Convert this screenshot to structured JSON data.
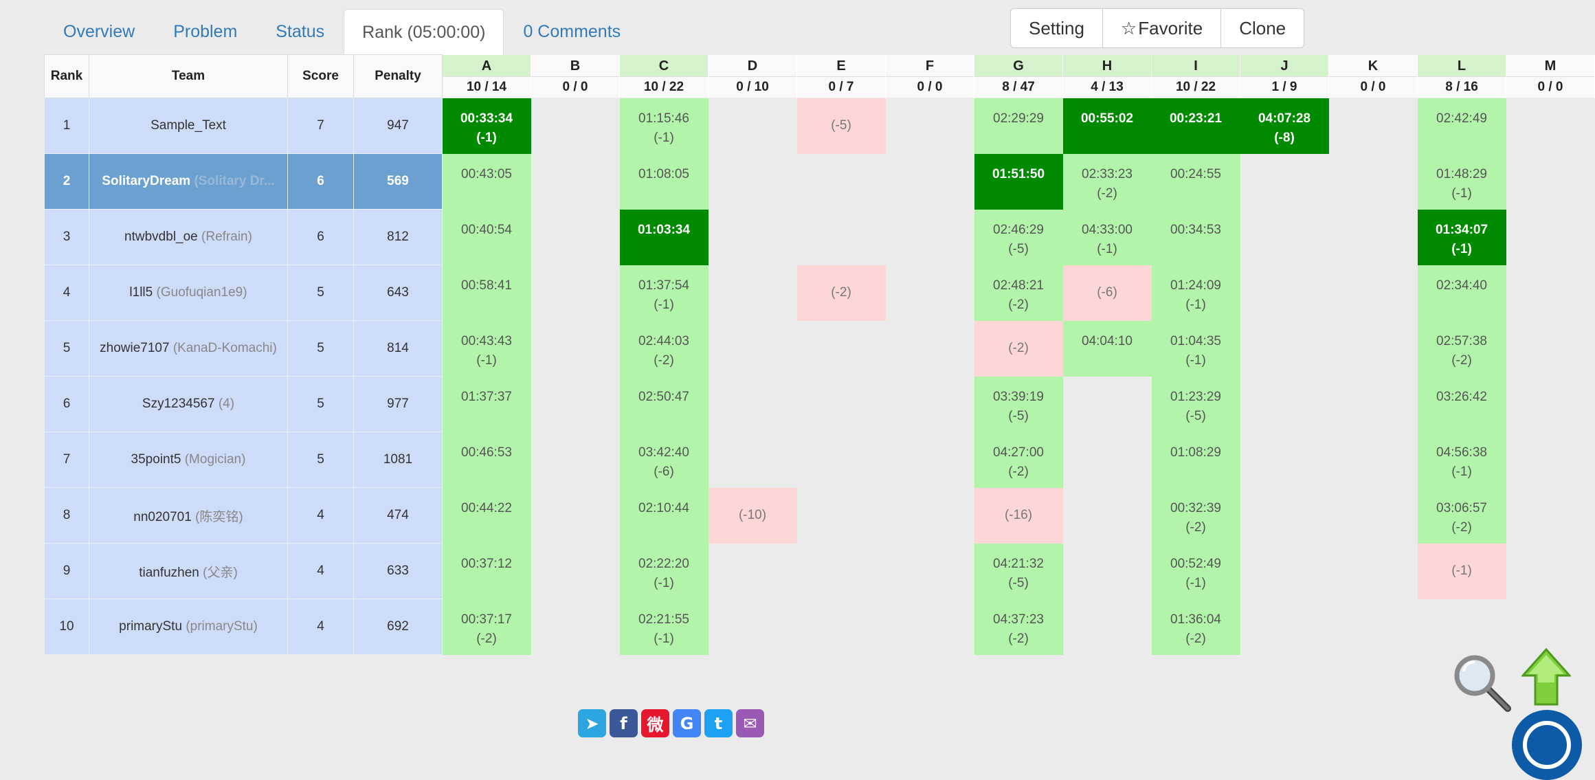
{
  "tabs": [
    "Overview",
    "Problem",
    "Status",
    "Rank (05:00:00)",
    "0 Comments"
  ],
  "active_tab": 3,
  "buttons": {
    "setting": "Setting",
    "favorite": "Favorite",
    "clone": "Clone"
  },
  "headers": {
    "rank": "Rank",
    "team": "Team",
    "score": "Score",
    "penalty": "Penalty"
  },
  "problems": [
    {
      "letter": "A",
      "stat": "10 / 14",
      "solved": true
    },
    {
      "letter": "B",
      "stat": "0 / 0",
      "solved": false
    },
    {
      "letter": "C",
      "stat": "10 / 22",
      "solved": true
    },
    {
      "letter": "D",
      "stat": "0 / 10",
      "solved": false
    },
    {
      "letter": "E",
      "stat": "0 / 7",
      "solved": false
    },
    {
      "letter": "F",
      "stat": "0 / 0",
      "solved": false
    },
    {
      "letter": "G",
      "stat": "8 / 47",
      "solved": true
    },
    {
      "letter": "H",
      "stat": "4 / 13",
      "solved": true
    },
    {
      "letter": "I",
      "stat": "10 / 22",
      "solved": true
    },
    {
      "letter": "J",
      "stat": "1 / 9",
      "solved": true
    },
    {
      "letter": "K",
      "stat": "0 / 0",
      "solved": false
    },
    {
      "letter": "L",
      "stat": "8 / 16",
      "solved": true
    },
    {
      "letter": "M",
      "stat": "0 / 0",
      "solved": false
    }
  ],
  "rows": [
    {
      "rank": "1",
      "team": "Sample_Text",
      "sub": "",
      "score": "7",
      "penalty": "947",
      "me": false,
      "cells": [
        {
          "k": "fb",
          "t": "00:33:34",
          "a": "(-1)"
        },
        {
          "k": "none"
        },
        {
          "k": "ac",
          "t": "01:15:46",
          "a": "(-1)"
        },
        {
          "k": "none"
        },
        {
          "k": "wa",
          "a": "(-5)"
        },
        {
          "k": "none"
        },
        {
          "k": "ac",
          "t": "02:29:29"
        },
        {
          "k": "fb",
          "t": "00:55:02"
        },
        {
          "k": "fb",
          "t": "00:23:21"
        },
        {
          "k": "fb",
          "t": "04:07:28",
          "a": "(-8)"
        },
        {
          "k": "none"
        },
        {
          "k": "ac",
          "t": "02:42:49"
        },
        {
          "k": "none"
        }
      ]
    },
    {
      "rank": "2",
      "team": "SolitaryDream",
      "sub": "(Solitary Dr...",
      "score": "6",
      "penalty": "569",
      "me": true,
      "cells": [
        {
          "k": "ac",
          "t": "00:43:05"
        },
        {
          "k": "none"
        },
        {
          "k": "ac",
          "t": "01:08:05"
        },
        {
          "k": "none"
        },
        {
          "k": "none"
        },
        {
          "k": "none"
        },
        {
          "k": "fb",
          "t": "01:51:50"
        },
        {
          "k": "ac",
          "t": "02:33:23",
          "a": "(-2)"
        },
        {
          "k": "ac",
          "t": "00:24:55"
        },
        {
          "k": "none"
        },
        {
          "k": "none"
        },
        {
          "k": "ac",
          "t": "01:48:29",
          "a": "(-1)"
        },
        {
          "k": "none"
        }
      ]
    },
    {
      "rank": "3",
      "team": "ntwbvdbl_oe",
      "sub": "(Refrain)",
      "score": "6",
      "penalty": "812",
      "me": false,
      "cells": [
        {
          "k": "ac",
          "t": "00:40:54"
        },
        {
          "k": "none"
        },
        {
          "k": "fb",
          "t": "01:03:34"
        },
        {
          "k": "none"
        },
        {
          "k": "none"
        },
        {
          "k": "none"
        },
        {
          "k": "ac",
          "t": "02:46:29",
          "a": "(-5)"
        },
        {
          "k": "ac",
          "t": "04:33:00",
          "a": "(-1)"
        },
        {
          "k": "ac",
          "t": "00:34:53"
        },
        {
          "k": "none"
        },
        {
          "k": "none"
        },
        {
          "k": "fb",
          "t": "01:34:07",
          "a": "(-1)"
        },
        {
          "k": "none"
        }
      ]
    },
    {
      "rank": "4",
      "team": "l1ll5",
      "sub": "(Guofuqian1e9)",
      "score": "5",
      "penalty": "643",
      "me": false,
      "cells": [
        {
          "k": "ac",
          "t": "00:58:41"
        },
        {
          "k": "none"
        },
        {
          "k": "ac",
          "t": "01:37:54",
          "a": "(-1)"
        },
        {
          "k": "none"
        },
        {
          "k": "wa",
          "a": "(-2)"
        },
        {
          "k": "none"
        },
        {
          "k": "ac",
          "t": "02:48:21",
          "a": "(-2)"
        },
        {
          "k": "wa",
          "a": "(-6)"
        },
        {
          "k": "ac",
          "t": "01:24:09",
          "a": "(-1)"
        },
        {
          "k": "none"
        },
        {
          "k": "none"
        },
        {
          "k": "ac",
          "t": "02:34:40"
        },
        {
          "k": "none"
        }
      ]
    },
    {
      "rank": "5",
      "team": "zhowie7107",
      "sub": "(KanaD-Komachi)",
      "score": "5",
      "penalty": "814",
      "me": false,
      "cells": [
        {
          "k": "ac",
          "t": "00:43:43",
          "a": "(-1)"
        },
        {
          "k": "none"
        },
        {
          "k": "ac",
          "t": "02:44:03",
          "a": "(-2)"
        },
        {
          "k": "none"
        },
        {
          "k": "none"
        },
        {
          "k": "none"
        },
        {
          "k": "wa",
          "a": "(-2)"
        },
        {
          "k": "ac",
          "t": "04:04:10"
        },
        {
          "k": "ac",
          "t": "01:04:35",
          "a": "(-1)"
        },
        {
          "k": "none"
        },
        {
          "k": "none"
        },
        {
          "k": "ac",
          "t": "02:57:38",
          "a": "(-2)"
        },
        {
          "k": "none"
        }
      ]
    },
    {
      "rank": "6",
      "team": "Szy1234567",
      "sub": "(4)",
      "score": "5",
      "penalty": "977",
      "me": false,
      "cells": [
        {
          "k": "ac",
          "t": "01:37:37"
        },
        {
          "k": "none"
        },
        {
          "k": "ac",
          "t": "02:50:47"
        },
        {
          "k": "none"
        },
        {
          "k": "none"
        },
        {
          "k": "none"
        },
        {
          "k": "ac",
          "t": "03:39:19",
          "a": "(-5)"
        },
        {
          "k": "none"
        },
        {
          "k": "ac",
          "t": "01:23:29",
          "a": "(-5)"
        },
        {
          "k": "none"
        },
        {
          "k": "none"
        },
        {
          "k": "ac",
          "t": "03:26:42"
        },
        {
          "k": "none"
        }
      ]
    },
    {
      "rank": "7",
      "team": "35point5",
      "sub": "(Mogician)",
      "score": "5",
      "penalty": "1081",
      "me": false,
      "cells": [
        {
          "k": "ac",
          "t": "00:46:53"
        },
        {
          "k": "none"
        },
        {
          "k": "ac",
          "t": "03:42:40",
          "a": "(-6)"
        },
        {
          "k": "none"
        },
        {
          "k": "none"
        },
        {
          "k": "none"
        },
        {
          "k": "ac",
          "t": "04:27:00",
          "a": "(-2)"
        },
        {
          "k": "none"
        },
        {
          "k": "ac",
          "t": "01:08:29"
        },
        {
          "k": "none"
        },
        {
          "k": "none"
        },
        {
          "k": "ac",
          "t": "04:56:38",
          "a": "(-1)"
        },
        {
          "k": "none"
        }
      ]
    },
    {
      "rank": "8",
      "team": "nn020701",
      "sub": "(陈奕铭)",
      "score": "4",
      "penalty": "474",
      "me": false,
      "cells": [
        {
          "k": "ac",
          "t": "00:44:22"
        },
        {
          "k": "none"
        },
        {
          "k": "ac",
          "t": "02:10:44"
        },
        {
          "k": "wa",
          "a": "(-10)"
        },
        {
          "k": "none"
        },
        {
          "k": "none"
        },
        {
          "k": "wa",
          "a": "(-16)"
        },
        {
          "k": "none"
        },
        {
          "k": "ac",
          "t": "00:32:39",
          "a": "(-2)"
        },
        {
          "k": "none"
        },
        {
          "k": "none"
        },
        {
          "k": "ac",
          "t": "03:06:57",
          "a": "(-2)"
        },
        {
          "k": "none"
        }
      ]
    },
    {
      "rank": "9",
      "team": "tianfuzhen",
      "sub": "(父亲)",
      "score": "4",
      "penalty": "633",
      "me": false,
      "cells": [
        {
          "k": "ac",
          "t": "00:37:12"
        },
        {
          "k": "none"
        },
        {
          "k": "ac",
          "t": "02:22:20",
          "a": "(-1)"
        },
        {
          "k": "none"
        },
        {
          "k": "none"
        },
        {
          "k": "none"
        },
        {
          "k": "ac",
          "t": "04:21:32",
          "a": "(-5)"
        },
        {
          "k": "none"
        },
        {
          "k": "ac",
          "t": "00:52:49",
          "a": "(-1)"
        },
        {
          "k": "none"
        },
        {
          "k": "none"
        },
        {
          "k": "wa",
          "a": "(-1)"
        },
        {
          "k": "none"
        }
      ]
    },
    {
      "rank": "10",
      "team": "primaryStu",
      "sub": "(primaryStu)",
      "score": "4",
      "penalty": "692",
      "me": false,
      "cells": [
        {
          "k": "ac",
          "t": "00:37:17",
          "a": "(-2)"
        },
        {
          "k": "none"
        },
        {
          "k": "ac",
          "t": "02:21:55",
          "a": "(-1)"
        },
        {
          "k": "none"
        },
        {
          "k": "none"
        },
        {
          "k": "none"
        },
        {
          "k": "ac",
          "t": "04:37:23",
          "a": "(-2)"
        },
        {
          "k": "none"
        },
        {
          "k": "ac",
          "t": "01:36:04",
          "a": "(-2)"
        },
        {
          "k": "none"
        },
        {
          "k": "none"
        },
        {
          "k": "none"
        },
        {
          "k": "none"
        }
      ]
    }
  ],
  "share_icons": [
    {
      "name": "telegram-share-icon",
      "glyph": "➤",
      "color": "#2ca5e0"
    },
    {
      "name": "facebook-share-icon",
      "glyph": "f",
      "color": "#3b5998"
    },
    {
      "name": "weibo-share-icon",
      "glyph": "微",
      "color": "#e6162d"
    },
    {
      "name": "google-share-icon",
      "glyph": "G",
      "color": "#4285f4"
    },
    {
      "name": "twitter-share-icon",
      "glyph": "t",
      "color": "#1da1f2"
    },
    {
      "name": "email-share-icon",
      "glyph": "✉",
      "color": "#9b59b6"
    }
  ],
  "colors": {
    "accepted": "#b2f5aa",
    "first_blood": "#008a00",
    "wrong": "#fdd6d6",
    "team_bg": "#cddcf8",
    "my_team_bg": "#6ba0d0",
    "link": "#337ab7"
  }
}
